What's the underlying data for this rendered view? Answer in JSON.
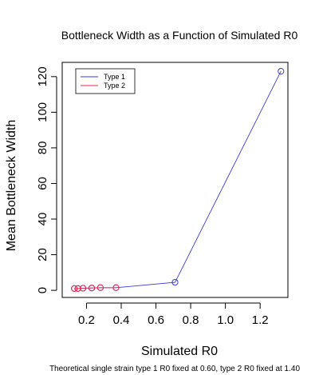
{
  "chart_data": {
    "type": "line",
    "title": "Bottleneck Width as a Function of Simulated R0",
    "xlabel": "Simulated R0",
    "ylabel": "Mean Bottleneck Width",
    "caption": "Theoretical single strain type 1 R0 fixed at 0.60, type 2 R0 fixed at 1.40",
    "xlim": [
      0.06,
      1.36
    ],
    "ylim": [
      -4,
      128
    ],
    "x_ticks": [
      0.2,
      0.4,
      0.6,
      0.8,
      1.0,
      1.2
    ],
    "x_tick_labels": [
      "0.2",
      "0.4",
      "0.6",
      "0.8",
      "1.0",
      "1.2"
    ],
    "y_ticks": [
      0,
      20,
      40,
      60,
      80,
      100,
      120
    ],
    "y_tick_labels": [
      "0",
      "20",
      "40",
      "60",
      "80",
      "100",
      "120"
    ],
    "legend_position": "top-left",
    "series": [
      {
        "name": "Type 1",
        "color": "#3b3bdb",
        "x": [
          0.13,
          0.15,
          0.18,
          0.23,
          0.28,
          0.37,
          0.71,
          1.32
        ],
        "y": [
          1.0,
          1.0,
          1.2,
          1.3,
          1.5,
          1.5,
          4.5,
          123
        ]
      },
      {
        "name": "Type 2",
        "color": "#ee2b4b",
        "x": [
          0.13,
          0.15,
          0.18,
          0.23,
          0.28,
          0.37
        ],
        "y": [
          1.0,
          1.0,
          1.2,
          1.3,
          1.5,
          1.5
        ]
      }
    ]
  }
}
